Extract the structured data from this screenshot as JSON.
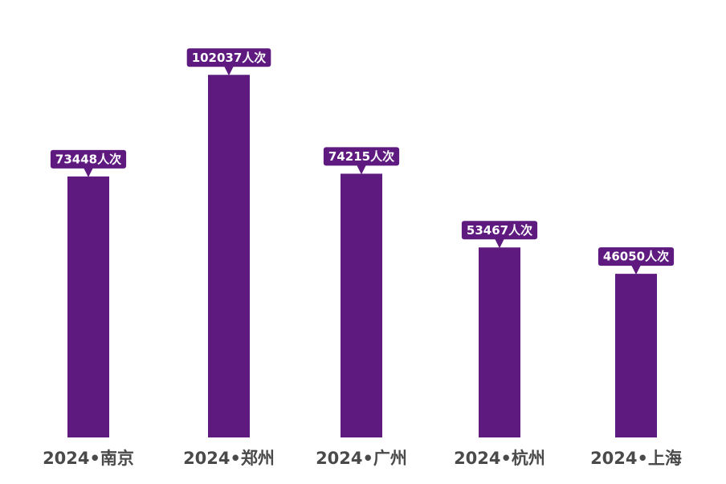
{
  "chart_data": {
    "type": "bar",
    "categories": [
      "2024•南京",
      "2024•郑州",
      "2024•广州",
      "2024•杭州",
      "2024•上海"
    ],
    "values": [
      73448,
      102037,
      74215,
      53467,
      46050
    ],
    "data_labels": [
      "73448人次",
      "102037人次",
      "74215人次",
      "53467人次",
      "46050人次"
    ],
    "ylim": [
      0,
      110000
    ],
    "grid": false,
    "legend": "none",
    "bar_color": "#5e1a7e",
    "label_bg_color": "#5e1a7e",
    "label_text_color": "#ffffff",
    "axis_label_color": "#4a4a4a"
  }
}
